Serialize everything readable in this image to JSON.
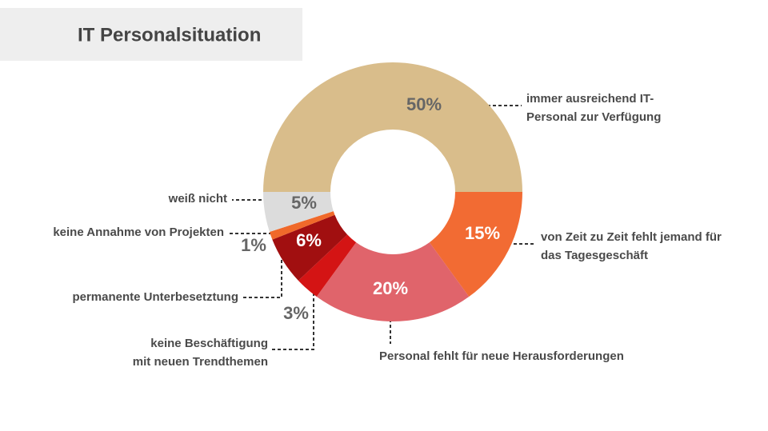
{
  "chart_data": {
    "type": "donut",
    "title": "IT Personalsituation",
    "categories": [
      "immer ausreichend IT-\nPersonal zur Verfügung",
      "von Zeit zu Zeit fehlt jemand für\ndas Tagesgeschäft",
      "Personal fehlt für neue Herausforderungen",
      "keine Beschäftigung\nmit neuen Trendthemen",
      "permanente Unterbesetztung",
      "keine Annahme von Projekten",
      "weiß nicht"
    ],
    "values": [
      50,
      15,
      20,
      3,
      6,
      1,
      5
    ],
    "value_labels": [
      "50%",
      "15%",
      "20%",
      "3%",
      "6%",
      "1%",
      "5%"
    ],
    "colors": [
      "#d9bd8b",
      "#f26b33",
      "#e0646b",
      "#d41414",
      "#a10f10",
      "#f0692a",
      "#dcdcdc"
    ]
  }
}
